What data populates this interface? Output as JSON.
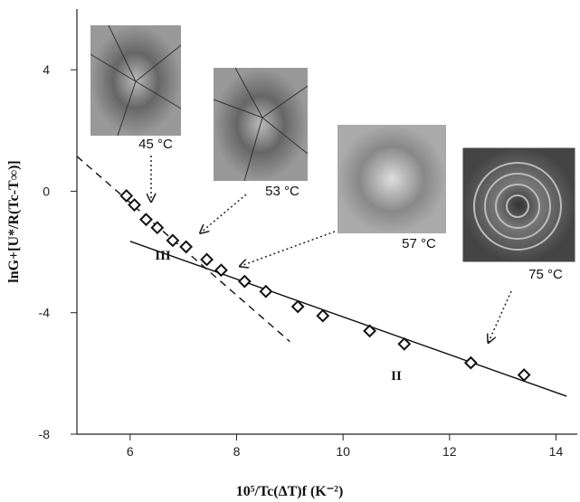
{
  "chart_data": {
    "type": "scatter",
    "x_label": "10⁵/Tc(ΔT)f (K⁻²)",
    "y_label": "lnG+[U*/R(Tc-T∞)]",
    "xlim": [
      5,
      14.4
    ],
    "ylim": [
      -8,
      6
    ],
    "xticks": [
      6,
      8,
      10,
      12,
      14
    ],
    "yticks": [
      -8,
      -4,
      0,
      4
    ],
    "series": [
      {
        "marker": "diamond",
        "color": "#111111",
        "x": [
          5.93,
          6.08,
          6.3,
          6.51,
          6.8,
          7.05,
          7.44,
          7.71,
          8.15,
          8.55,
          9.15,
          9.62,
          10.5,
          11.15,
          12.4,
          13.4
        ],
        "values": [
          -0.15,
          -0.45,
          -0.93,
          -1.2,
          -1.62,
          -1.83,
          -2.25,
          -2.6,
          -2.97,
          -3.3,
          -3.8,
          -4.1,
          -4.6,
          -5.03,
          -5.65,
          -6.05
        ]
      }
    ],
    "lines": [
      {
        "style": "dashed",
        "x": [
          5,
          9
        ],
        "values": [
          1.15,
          -4.95
        ]
      },
      {
        "style": "solid",
        "x": [
          6,
          14.2
        ],
        "values": [
          -1.65,
          -6.75
        ]
      }
    ],
    "annotations": [
      "III",
      "II"
    ],
    "insets": [
      "45 °C",
      "53 °C",
      "57 °C",
      "75 °C"
    ]
  }
}
